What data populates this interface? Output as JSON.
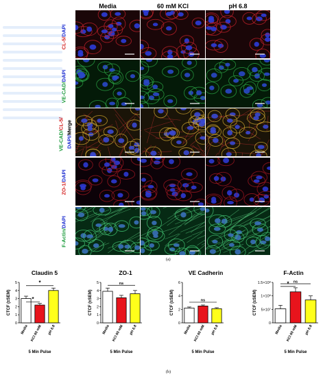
{
  "columns": [
    "Media",
    "60 mM KCl",
    "pH 6.8"
  ],
  "rows": [
    {
      "id": "cl5",
      "label_parts": [
        {
          "text": "CL-5/",
          "color": "#d42020"
        },
        {
          "text": "DAPI",
          "color": "#1a2bd0"
        }
      ]
    },
    {
      "id": "vecad",
      "label_parts": [
        {
          "text": "VE-CAD/",
          "color": "#1a9a3a"
        },
        {
          "text": "DAPI",
          "color": "#1a2bd0"
        }
      ]
    },
    {
      "id": "merge",
      "label_parts": [
        {
          "text": "VE-CAD/",
          "color": "#1a9a3a"
        },
        {
          "text": "CL-5/",
          "color": "#d42020"
        }
      ],
      "label_parts2": [
        {
          "text": "DAPI/",
          "color": "#1a2bd0"
        },
        {
          "text": "Merge",
          "color": "#000000"
        }
      ]
    },
    {
      "id": "zo1",
      "label_parts": [
        {
          "text": "ZO-1/",
          "color": "#d42020"
        },
        {
          "text": "DAPI",
          "color": "#1a2bd0"
        }
      ]
    },
    {
      "id": "factin",
      "label_parts": [
        {
          "text": "F-Actin/",
          "color": "#1a9a3a"
        },
        {
          "text": "DAPI",
          "color": "#1a2bd0"
        }
      ]
    }
  ],
  "caption_a": "(a)",
  "caption_b": "(b)",
  "chart_data": [
    {
      "type": "bar",
      "title": "Claudin 5",
      "categories": [
        "Media",
        "KCl 60 mM",
        "pH 6.8"
      ],
      "values": [
        3.0,
        2.2,
        4.0
      ],
      "errors": [
        0.3,
        0.2,
        0.3
      ],
      "colors": [
        "#ffffff",
        "#e8141c",
        "#ffff1a"
      ],
      "ylabel": "CTCF (±SEM)",
      "xlabel": "5 Min Pulse",
      "ylim": [
        0,
        5
      ],
      "yticks": [
        "0",
        "1",
        "2",
        "3",
        "4",
        "5"
      ],
      "significance": [
        {
          "from": 0,
          "to": 1,
          "label": "*"
        },
        {
          "from": 0,
          "to": 2,
          "label": "*"
        }
      ]
    },
    {
      "type": "bar",
      "title": "ZO-1",
      "categories": [
        "Media",
        "KCl 60 mM",
        "pH 6.8"
      ],
      "values": [
        3.9,
        3.1,
        3.6
      ],
      "errors": [
        0.4,
        0.3,
        0.4
      ],
      "colors": [
        "#ffffff",
        "#e8141c",
        "#ffff1a"
      ],
      "ylabel": "CTCF (±SEM)",
      "xlabel": "5 Min Pulse",
      "ylim": [
        0,
        5
      ],
      "yticks": [
        "0",
        "1",
        "2",
        "3",
        "4",
        "5"
      ],
      "significance": [
        {
          "from": 0,
          "to": 2,
          "label": "ns"
        }
      ]
    },
    {
      "type": "bar",
      "title": "VE  Cadherin",
      "categories": [
        "Media",
        "KCl 60 mM",
        "pH 6.8"
      ],
      "values": [
        2.2,
        2.5,
        2.1
      ],
      "errors": [
        0.15,
        0.15,
        0.15
      ],
      "colors": [
        "#ffffff",
        "#e8141c",
        "#ffff1a"
      ],
      "ylabel": "CTCF (±SEM)",
      "xlabel": "5 Min Pulse",
      "ylim": [
        0,
        6
      ],
      "yticks": [
        "0",
        "2",
        "4",
        "6"
      ],
      "significance": [
        {
          "from": 0,
          "to": 2,
          "label": "ns"
        }
      ]
    },
    {
      "type": "bar",
      "title": "F-Actin",
      "categories": [
        "Media",
        "KCl 60 mM",
        "pH 6.8"
      ],
      "values": [
        52000000.0,
        115000000.0,
        85000000.0
      ],
      "errors": [
        13000000.0,
        15000000.0,
        15000000.0
      ],
      "colors": [
        "#ffffff",
        "#e8141c",
        "#ffff1a"
      ],
      "ylabel": "CTCF (±SEM)",
      "xlabel": "5 Min Pulse",
      "ylim": [
        0,
        150000000.0
      ],
      "yticks": [
        "0",
        "5×10⁷",
        "1×10⁸",
        "1.5×10⁸"
      ],
      "significance": [
        {
          "from": 0,
          "to": 1,
          "label": "*"
        },
        {
          "from": 0,
          "to": 2,
          "label": "ns"
        }
      ]
    }
  ]
}
